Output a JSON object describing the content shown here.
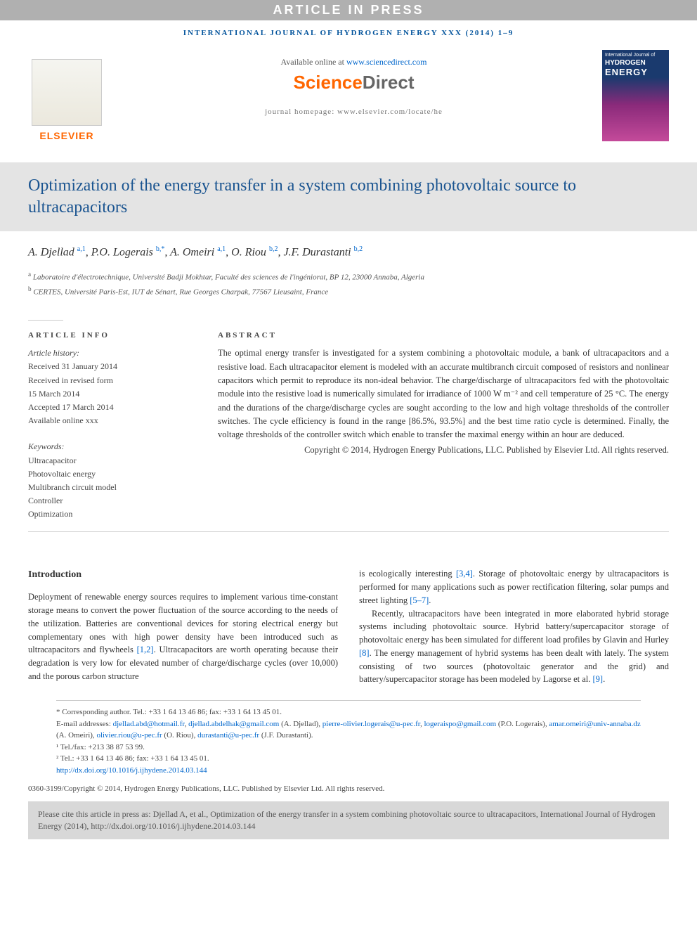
{
  "banner": "ARTICLE IN PRESS",
  "journal_header": "INTERNATIONAL JOURNAL OF HYDROGEN ENERGY XXX (2014) 1–9",
  "header": {
    "available_text": "Available online at ",
    "available_url": "www.sciencedirect.com",
    "sciencedirect_1": "Science",
    "sciencedirect_2": "Direct",
    "homepage_text": "journal homepage: www.elsevier.com/locate/he",
    "elsevier": "ELSEVIER",
    "cover_line1": "International Journal of",
    "cover_line2": "HYDROGEN",
    "cover_line3": "ENERGY"
  },
  "title": "Optimization of the energy transfer in a system combining photovoltaic source to ultracapacitors",
  "authors_html": "A. Djellad <sup>a,1</sup>, P.O. Logerais <sup>b,*</sup>, A. Omeiri <sup>a,1</sup>, O. Riou <sup>b,2</sup>, J.F. Durastanti <sup>b,2</sup>",
  "affiliations": {
    "a": "Laboratoire d'électrotechnique, Université Badji Mokhtar, Faculté des sciences de l'ingéniorat, BP 12, 23000 Annaba, Algeria",
    "b": "CERTES, Université Paris-Est, IUT de Sénart, Rue Georges Charpak, 77567 Lieusaint, France"
  },
  "article_info": {
    "heading": "ARTICLE INFO",
    "history_label": "Article history:",
    "received": "Received 31 January 2014",
    "revised1": "Received in revised form",
    "revised2": "15 March 2014",
    "accepted": "Accepted 17 March 2014",
    "available": "Available online xxx",
    "keywords_label": "Keywords:",
    "keywords": [
      "Ultracapacitor",
      "Photovoltaic energy",
      "Multibranch circuit model",
      "Controller",
      "Optimization"
    ]
  },
  "abstract": {
    "heading": "ABSTRACT",
    "text": "The optimal energy transfer is investigated for a system combining a photovoltaic module, a bank of ultracapacitors and a resistive load. Each ultracapacitor element is modeled with an accurate multibranch circuit composed of resistors and nonlinear capacitors which permit to reproduce its non-ideal behavior. The charge/discharge of ultracapacitors fed with the photovoltaic module into the resistive load is numerically simulated for irradiance of 1000 W m⁻² and cell temperature of 25 °C. The energy and the durations of the charge/discharge cycles are sought according to the low and high voltage thresholds of the controller switches. The cycle efficiency is found in the range [86.5%, 93.5%] and the best time ratio cycle is determined. Finally, the voltage thresholds of the controller switch which enable to transfer the maximal energy within an hour are deduced.",
    "copyright": "Copyright © 2014, Hydrogen Energy Publications, LLC. Published by Elsevier Ltd. All rights reserved."
  },
  "body": {
    "intro_heading": "Introduction",
    "col1_p1": "Deployment of renewable energy sources requires to implement various time-constant storage means to convert the power fluctuation of the source according to the needs of the utilization. Batteries are conventional devices for storing electrical energy but complementary ones with high power density have been introduced such as ultracapacitors and flywheels ",
    "ref12": "[1,2]",
    "col1_p1b": ". Ultracapacitors are worth operating because their degradation is very low for elevated number of charge/discharge cycles (over 10,000) and the porous carbon structure",
    "col2_p1a": "is ecologically interesting ",
    "ref34": "[3,4]",
    "col2_p1b": ". Storage of photovoltaic energy by ultracapacitors is performed for many applications such as power rectification filtering, solar pumps and street lighting ",
    "ref57": "[5–7]",
    "col2_p1c": ".",
    "col2_p2a": "Recently, ultracapacitors have been integrated in more elaborated hybrid storage systems including photovoltaic source. Hybrid battery/supercapacitor storage of photovoltaic energy has been simulated for different load profiles by Glavin and Hurley ",
    "ref8": "[8]",
    "col2_p2b": ". The energy management of hybrid systems has been dealt with lately. The system consisting of two sources (photovoltaic generator and the grid) and battery/supercapacitor storage has been modeled by Lagorse et al. ",
    "ref9": "[9]",
    "col2_p2c": "."
  },
  "footnotes": {
    "corresponding": "* Corresponding author. Tel.: +33 1 64 13 46 86; fax: +33 1 64 13 45 01.",
    "email_label": "E-mail addresses: ",
    "emails": [
      {
        "addr": "djellad.abd@hotmail.fr",
        "sep": ", "
      },
      {
        "addr": "djellad.abdelhak@gmail.com",
        "sep": " (A. Djellad), "
      },
      {
        "addr": "pierre-olivier.logerais@u-pec.fr",
        "sep": ", "
      },
      {
        "addr": "logeraispo@gmail.com",
        "sep": " (P.O. Logerais), "
      },
      {
        "addr": "amar.omeiri@univ-annaba.dz",
        "sep": " (A. Omeiri), "
      },
      {
        "addr": "olivier.riou@u-pec.fr",
        "sep": " (O. Riou), "
      },
      {
        "addr": "durastanti@u-pec.fr",
        "sep": " (J.F. Durastanti)."
      }
    ],
    "tel1": "¹ Tel./fax: +213 38 87 53 99.",
    "tel2": "² Tel.: +33 1 64 13 46 86; fax: +33 1 64 13 45 01.",
    "doi": "http://dx.doi.org/10.1016/j.ijhydene.2014.03.144",
    "issn": "0360-3199/Copyright © 2014, Hydrogen Energy Publications, LLC. Published by Elsevier Ltd. All rights reserved."
  },
  "cite_box": "Please cite this article in press as: Djellad A, et al., Optimization of the energy transfer in a system combining photovoltaic source to ultracapacitors, International Journal of Hydrogen Energy (2014), http://dx.doi.org/10.1016/j.ijhydene.2014.03.144"
}
